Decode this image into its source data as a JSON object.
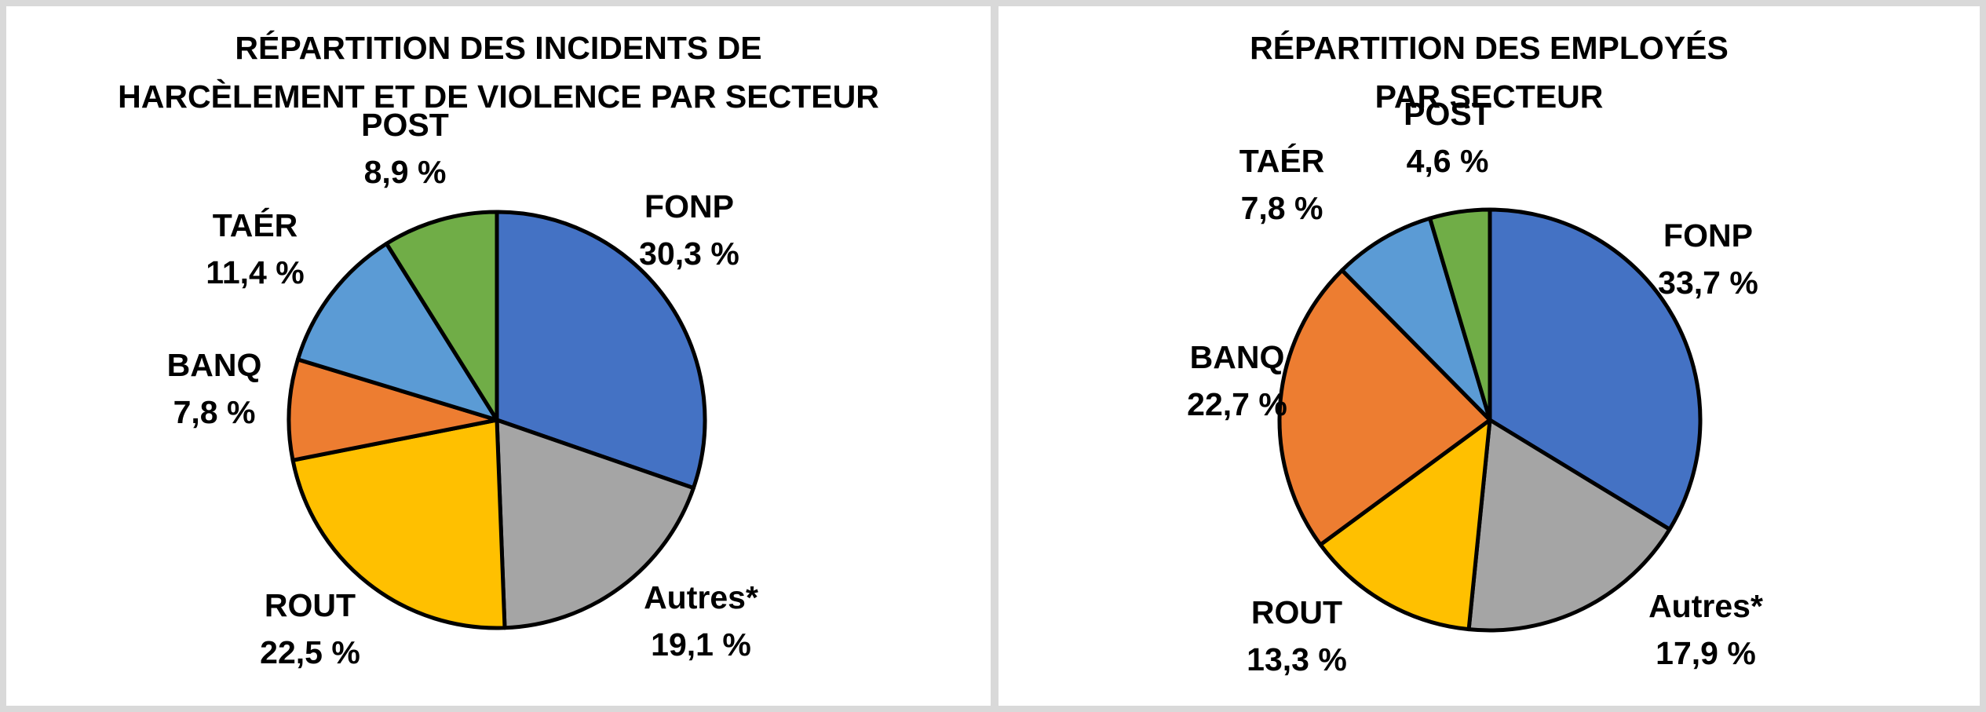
{
  "chart_data": [
    {
      "type": "pie",
      "title_lines": [
        "RÉPARTITION DES INCIDENTS DE",
        "HARCÈLEMENT ET DE VIOLENCE PAR SECTEUR"
      ],
      "slices": [
        {
          "name": "FONP",
          "value": 30.3,
          "label": "30,3 %",
          "color": "#4472c4"
        },
        {
          "name": "Autres*",
          "value": 19.1,
          "label": "19,1 %",
          "color": "#a5a5a5"
        },
        {
          "name": "ROUT",
          "value": 22.5,
          "label": "22,5 %",
          "color": "#ffc000"
        },
        {
          "name": "BANQ",
          "value": 7.8,
          "label": "7,8 %",
          "color": "#ed7d31"
        },
        {
          "name": "TAÉR",
          "value": 11.4,
          "label": "11,4 %",
          "color": "#5b9bd5"
        },
        {
          "name": "POST",
          "value": 8.9,
          "label": "8,9 %",
          "color": "#70ad47"
        }
      ]
    },
    {
      "type": "pie",
      "title_lines": [
        "RÉPARTITION DES EMPLOYÉS",
        "PAR SECTEUR"
      ],
      "slices": [
        {
          "name": "FONP",
          "value": 33.7,
          "label": "33,7 %",
          "color": "#4472c4"
        },
        {
          "name": "Autres*",
          "value": 17.9,
          "label": "17,9 %",
          "color": "#a5a5a5"
        },
        {
          "name": "ROUT",
          "value": 13.3,
          "label": "13,3 %",
          "color": "#ffc000"
        },
        {
          "name": "BANQ",
          "value": 22.7,
          "label": "22,7 %",
          "color": "#ed7d31"
        },
        {
          "name": "TAÉR",
          "value": 7.8,
          "label": "7,8 %",
          "color": "#5b9bd5"
        },
        {
          "name": "POST",
          "value": 4.6,
          "label": "4,6 %",
          "color": "#70ad47"
        }
      ]
    }
  ]
}
